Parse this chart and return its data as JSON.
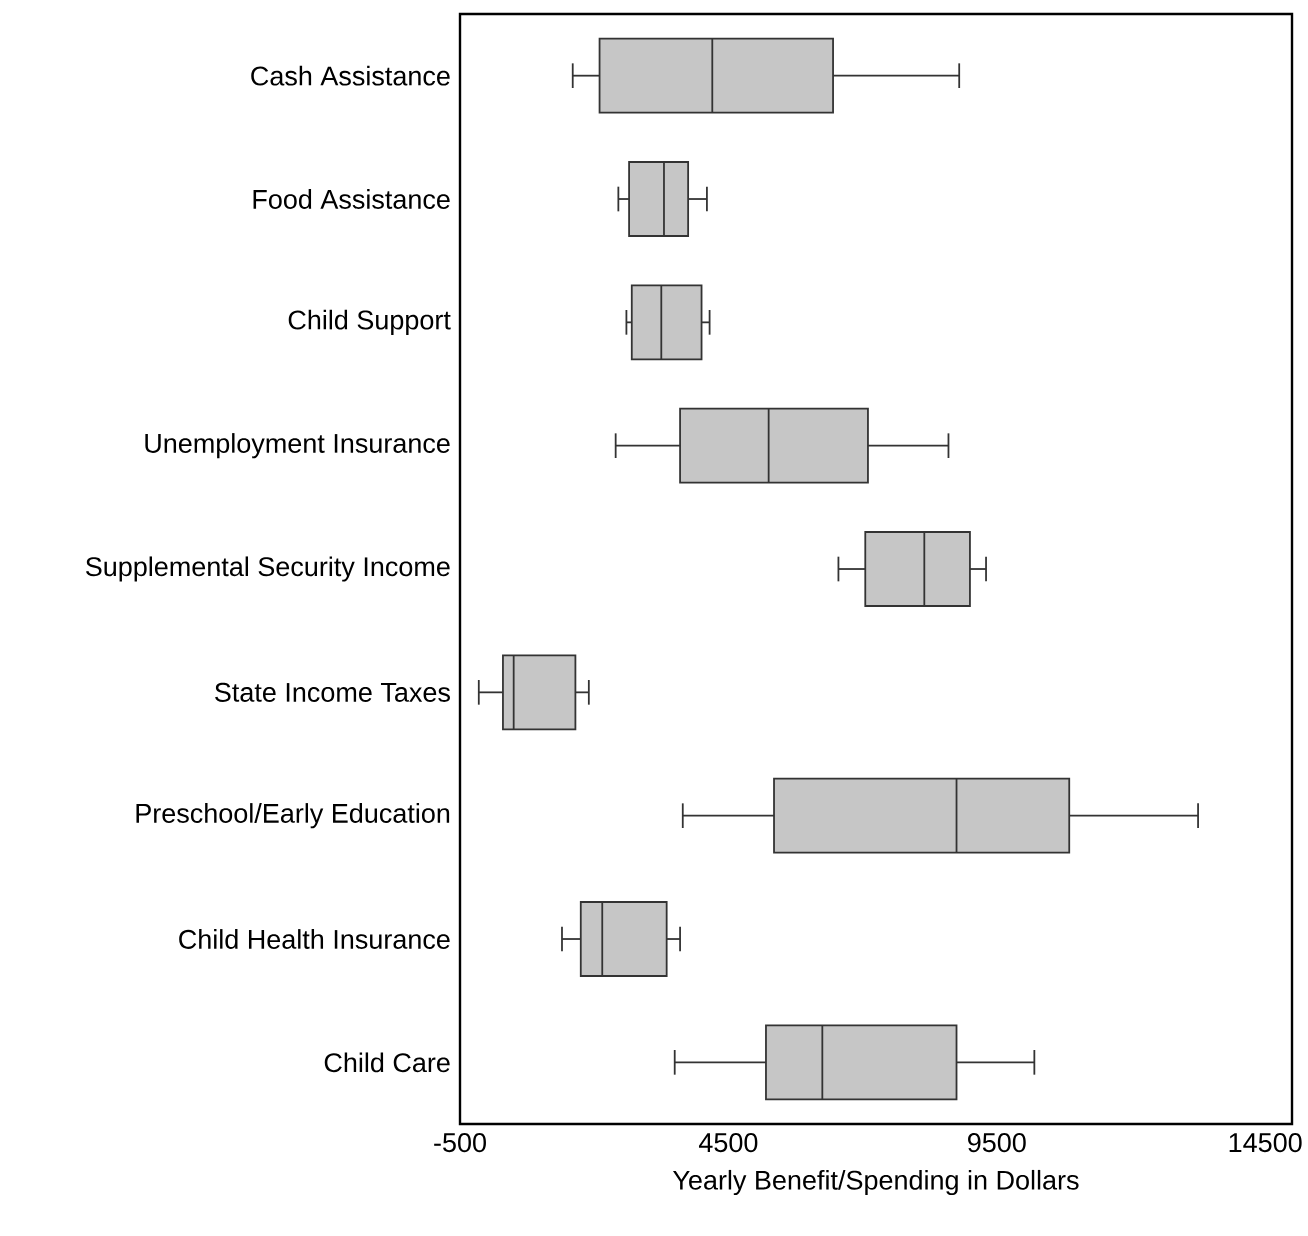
{
  "chart_data": {
    "type": "box",
    "orientation": "horizontal",
    "xlabel": "Yearly Benefit/Spending in Dollars",
    "color": "#c6c6c6",
    "categories": [
      "Cash Assistance",
      "Food Assistance",
      "Child Support",
      "Unemployment Insurance",
      "Supplemental Security Income",
      "State Income Taxes",
      "Preschool/Early Education",
      "Child Health Insurance",
      "Child Care"
    ],
    "boxes": [
      {
        "low": 1600,
        "q1": 2100,
        "median": 4200,
        "q3": 6450,
        "high": 8800
      },
      {
        "low": 2450,
        "q1": 2650,
        "median": 3300,
        "q3": 3750,
        "high": 4100
      },
      {
        "low": 2600,
        "q1": 2700,
        "median": 3250,
        "q3": 4000,
        "high": 4150
      },
      {
        "low": 2400,
        "q1": 3600,
        "median": 5250,
        "q3": 7100,
        "high": 8600
      },
      {
        "low": 6550,
        "q1": 7050,
        "median": 8150,
        "q3": 9000,
        "high": 9300
      },
      {
        "low": -150,
        "q1": 300,
        "median": 500,
        "q3": 1650,
        "high": 1900
      },
      {
        "low": 3650,
        "q1": 5350,
        "median": 8750,
        "q3": 10850,
        "high": 13250
      },
      {
        "low": 1400,
        "q1": 1750,
        "median": 2150,
        "q3": 3350,
        "high": 3600
      },
      {
        "low": 3500,
        "q1": 5200,
        "median": 6250,
        "q3": 8750,
        "high": 10200
      }
    ],
    "xlim": [
      -500,
      15000
    ],
    "xticks": [
      -500,
      4500,
      9500,
      14500
    ]
  }
}
